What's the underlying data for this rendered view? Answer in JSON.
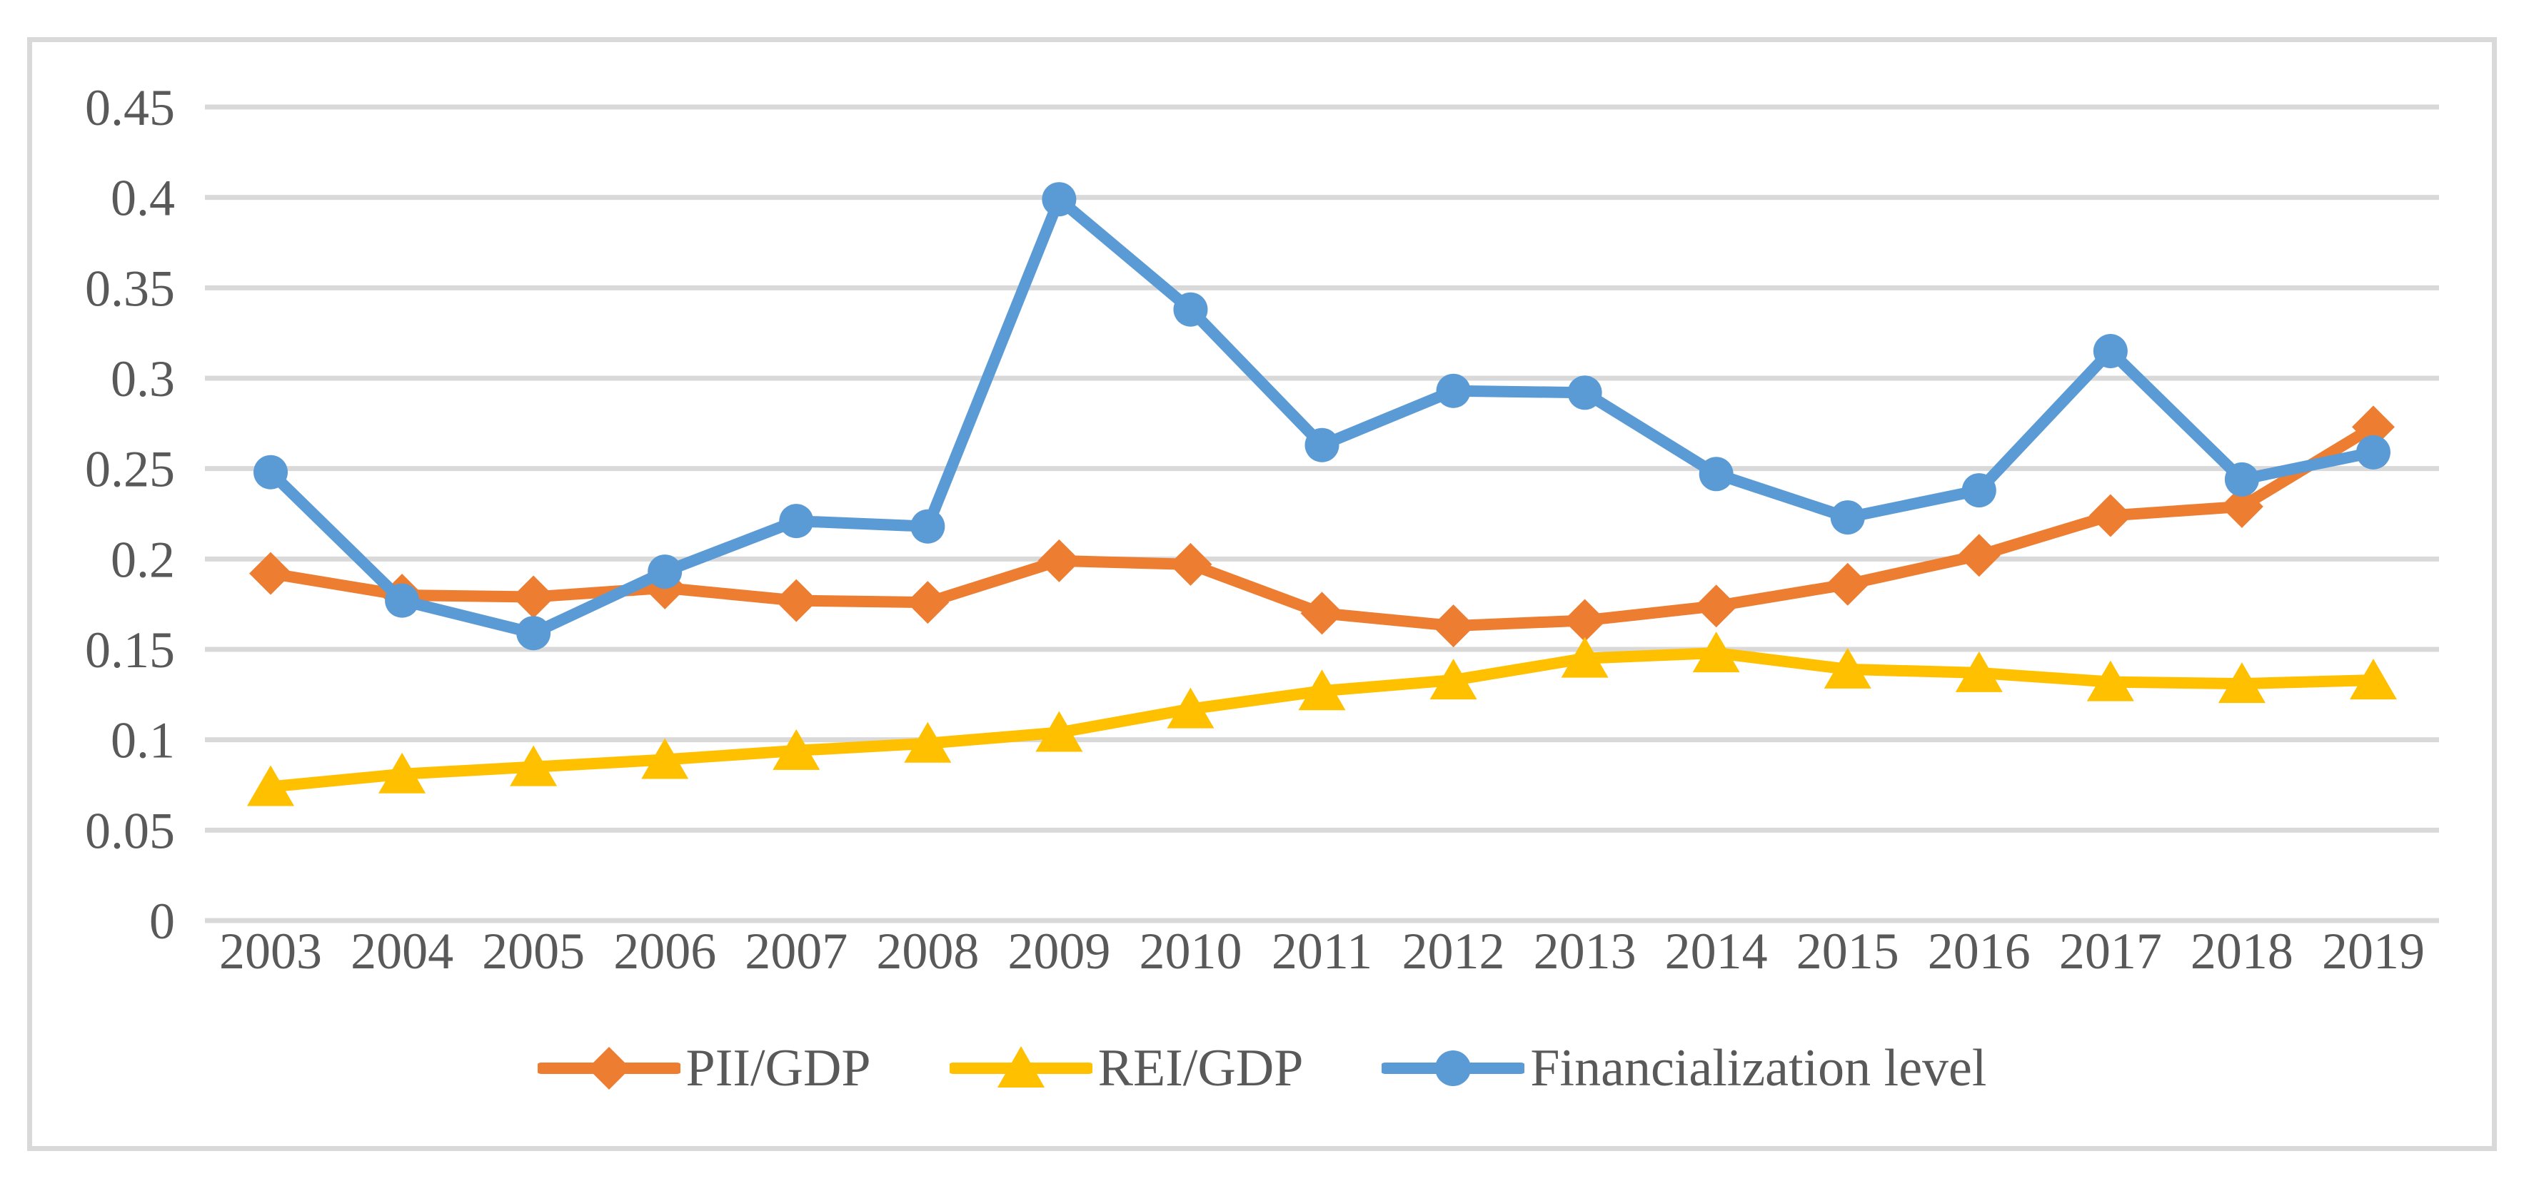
{
  "chart_data": {
    "type": "line",
    "title": "",
    "xlabel": "",
    "ylabel": "",
    "categories": [
      "2003",
      "2004",
      "2005",
      "2006",
      "2007",
      "2008",
      "2009",
      "2010",
      "2011",
      "2012",
      "2013",
      "2014",
      "2015",
      "2016",
      "2017",
      "2018",
      "2019"
    ],
    "series": [
      {
        "name": "PII/GDP",
        "color": "#ED7D31",
        "marker": "diamond",
        "values": [
          0.192,
          0.18,
          0.179,
          0.184,
          0.177,
          0.176,
          0.199,
          0.197,
          0.17,
          0.163,
          0.166,
          0.174,
          0.186,
          0.202,
          0.224,
          0.229,
          0.273
        ]
      },
      {
        "name": "REI/GDP",
        "color": "#FFC000",
        "marker": "triangle",
        "values": [
          0.074,
          0.081,
          0.085,
          0.089,
          0.094,
          0.098,
          0.104,
          0.117,
          0.127,
          0.133,
          0.145,
          0.148,
          0.139,
          0.137,
          0.132,
          0.131,
          0.133
        ]
      },
      {
        "name": "Financialization level",
        "color": "#5B9BD5",
        "marker": "circle",
        "values": [
          0.248,
          0.177,
          0.159,
          0.193,
          0.221,
          0.218,
          0.399,
          0.338,
          0.263,
          0.293,
          0.292,
          0.247,
          0.223,
          0.238,
          0.315,
          0.244,
          0.259
        ]
      }
    ],
    "ylim": [
      0,
      0.45
    ],
    "ytick_values": [
      0,
      0.05,
      0.1,
      0.15,
      0.2,
      0.25,
      0.3,
      0.35,
      0.4,
      0.45
    ],
    "ytick_labels": [
      "0",
      "0.05",
      "0.1",
      "0.15",
      "0.2",
      "0.25",
      "0.3",
      "0.35",
      "0.4",
      "0.45"
    ],
    "grid": true,
    "legend_position": "bottom",
    "colors": {
      "axis_text": "#595959",
      "gridline": "#d9d9d9",
      "frame_border": "#d9d9d9",
      "background": "#ffffff"
    }
  }
}
